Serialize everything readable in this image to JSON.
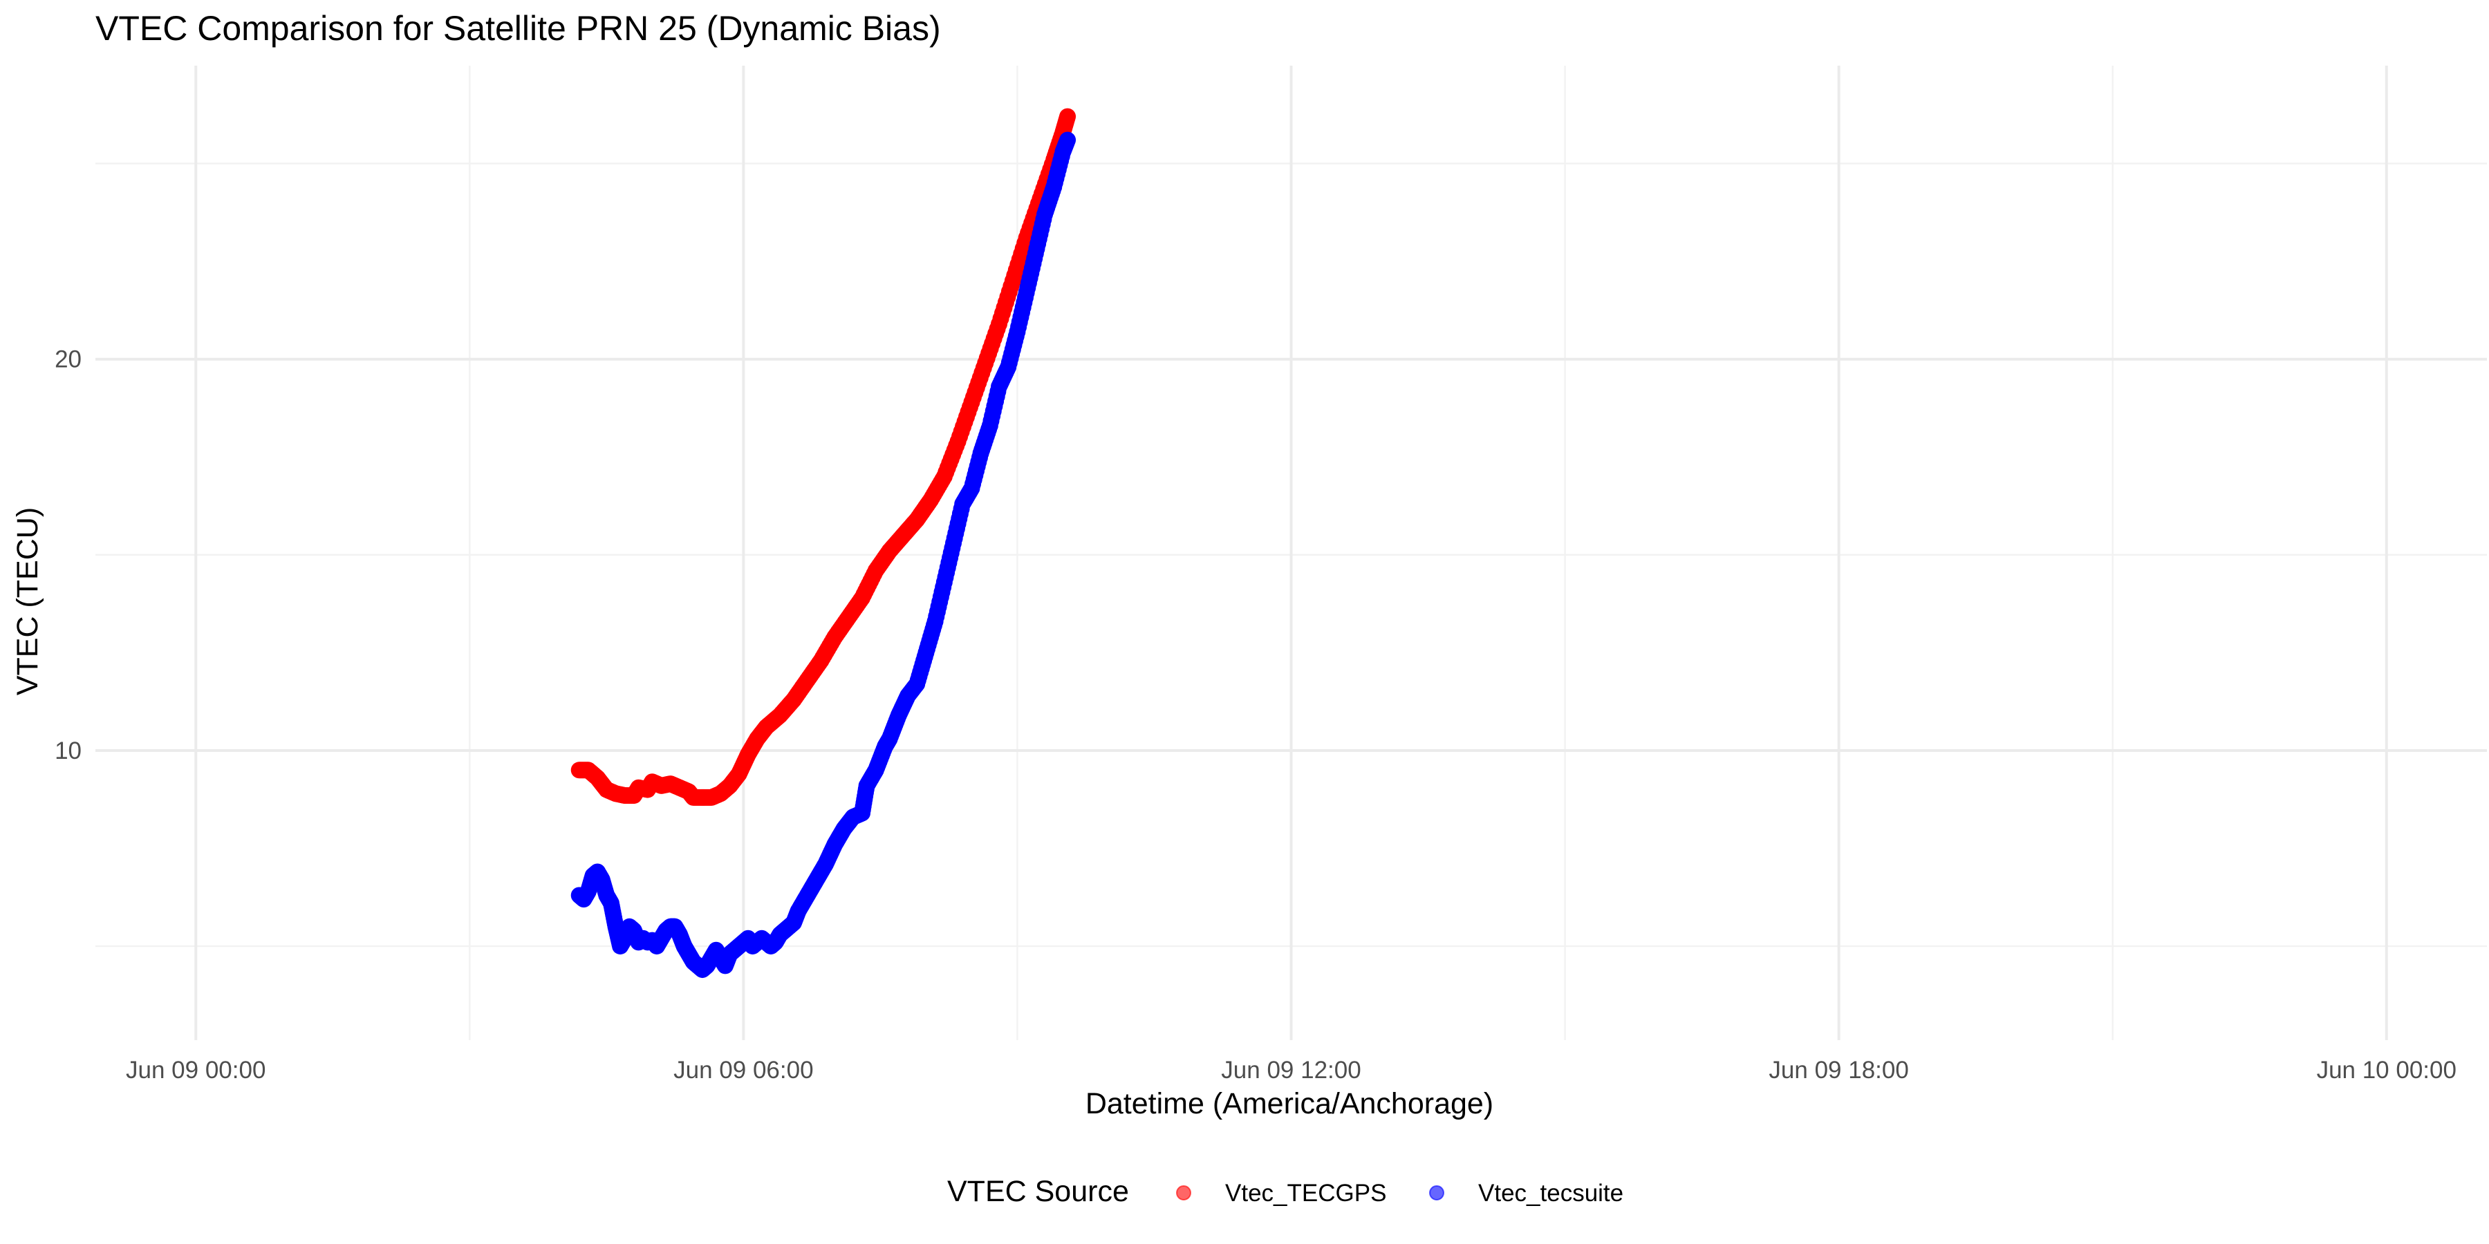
{
  "chart_data": {
    "type": "scatter",
    "title": "VTEC Comparison for Satellite PRN 25 (Dynamic Bias)",
    "xlabel": "Datetime (America/Anchorage)",
    "ylabel": "VTEC (TECU)",
    "x_type": "datetime",
    "x_ticks": [
      "Jun 09 00:00",
      "Jun 09 06:00",
      "Jun 09 12:00",
      "Jun 09 18:00",
      "Jun 10 00:00"
    ],
    "x_tick_hours": [
      0,
      6,
      12,
      18,
      24
    ],
    "xlim_hours": [
      -1.1,
      25.1
    ],
    "y_ticks": [
      10,
      20
    ],
    "ylim": [
      2.6,
      27.5
    ],
    "grid": true,
    "legend": {
      "title": "VTEC Source",
      "position": "bottom"
    },
    "series": [
      {
        "name": "Vtec_TECGPS",
        "color": "#ff0000",
        "points": [
          [
            4.2,
            9.5
          ],
          [
            4.3,
            9.5
          ],
          [
            4.4,
            9.3
          ],
          [
            4.5,
            9.0
          ],
          [
            4.6,
            8.9
          ],
          [
            4.7,
            8.85
          ],
          [
            4.8,
            8.85
          ],
          [
            4.85,
            9.05
          ],
          [
            4.95,
            9.0
          ],
          [
            5.0,
            9.2
          ],
          [
            5.1,
            9.1
          ],
          [
            5.2,
            9.15
          ],
          [
            5.3,
            9.05
          ],
          [
            5.4,
            8.95
          ],
          [
            5.45,
            8.8
          ],
          [
            5.55,
            8.8
          ],
          [
            5.65,
            8.8
          ],
          [
            5.75,
            8.9
          ],
          [
            5.85,
            9.1
          ],
          [
            5.95,
            9.4
          ],
          [
            6.05,
            9.9
          ],
          [
            6.15,
            10.3
          ],
          [
            6.25,
            10.6
          ],
          [
            6.4,
            10.9
          ],
          [
            6.55,
            11.3
          ],
          [
            6.7,
            11.8
          ],
          [
            6.85,
            12.3
          ],
          [
            7.0,
            12.9
          ],
          [
            7.15,
            13.4
          ],
          [
            7.3,
            13.9
          ],
          [
            7.45,
            14.6
          ],
          [
            7.6,
            15.1
          ],
          [
            7.75,
            15.5
          ],
          [
            7.9,
            15.9
          ],
          [
            8.05,
            16.4
          ],
          [
            8.2,
            17.0
          ],
          [
            8.35,
            17.9
          ],
          [
            8.5,
            18.9
          ],
          [
            8.65,
            19.9
          ],
          [
            8.8,
            20.9
          ],
          [
            8.95,
            22.0
          ],
          [
            9.1,
            23.1
          ],
          [
            9.25,
            24.1
          ],
          [
            9.4,
            25.1
          ],
          [
            9.5,
            25.8
          ],
          [
            9.55,
            26.2
          ]
        ]
      },
      {
        "name": "Vtec_tecsuite",
        "color": "#0000ff",
        "points": [
          [
            4.2,
            6.3
          ],
          [
            4.25,
            6.2
          ],
          [
            4.3,
            6.4
          ],
          [
            4.35,
            6.8
          ],
          [
            4.4,
            6.9
          ],
          [
            4.45,
            6.7
          ],
          [
            4.5,
            6.3
          ],
          [
            4.55,
            6.1
          ],
          [
            4.6,
            5.5
          ],
          [
            4.65,
            5.0
          ],
          [
            4.7,
            5.2
          ],
          [
            4.75,
            5.5
          ],
          [
            4.8,
            5.4
          ],
          [
            4.85,
            5.1
          ],
          [
            4.9,
            5.2
          ],
          [
            4.95,
            5.1
          ],
          [
            5.0,
            5.15
          ],
          [
            5.05,
            5.0
          ],
          [
            5.1,
            5.2
          ],
          [
            5.15,
            5.4
          ],
          [
            5.2,
            5.5
          ],
          [
            5.25,
            5.5
          ],
          [
            5.3,
            5.3
          ],
          [
            5.35,
            5.0
          ],
          [
            5.4,
            4.8
          ],
          [
            5.45,
            4.6
          ],
          [
            5.5,
            4.5
          ],
          [
            5.55,
            4.4
          ],
          [
            5.6,
            4.5
          ],
          [
            5.65,
            4.7
          ],
          [
            5.7,
            4.9
          ],
          [
            5.75,
            4.7
          ],
          [
            5.8,
            4.5
          ],
          [
            5.85,
            4.8
          ],
          [
            5.9,
            4.9
          ],
          [
            5.95,
            5.0
          ],
          [
            6.0,
            5.1
          ],
          [
            6.05,
            5.2
          ],
          [
            6.1,
            5.0
          ],
          [
            6.15,
            5.1
          ],
          [
            6.2,
            5.2
          ],
          [
            6.25,
            5.1
          ],
          [
            6.3,
            5.0
          ],
          [
            6.35,
            5.1
          ],
          [
            6.4,
            5.3
          ],
          [
            6.45,
            5.4
          ],
          [
            6.5,
            5.5
          ],
          [
            6.55,
            5.6
          ],
          [
            6.6,
            5.9
          ],
          [
            6.7,
            6.3
          ],
          [
            6.8,
            6.7
          ],
          [
            6.9,
            7.1
          ],
          [
            7.0,
            7.6
          ],
          [
            7.1,
            8.0
          ],
          [
            7.2,
            8.3
          ],
          [
            7.3,
            8.4
          ],
          [
            7.35,
            9.1
          ],
          [
            7.45,
            9.5
          ],
          [
            7.55,
            10.1
          ],
          [
            7.6,
            10.3
          ],
          [
            7.7,
            10.9
          ],
          [
            7.8,
            11.4
          ],
          [
            7.9,
            11.7
          ],
          [
            8.0,
            12.5
          ],
          [
            8.1,
            13.3
          ],
          [
            8.2,
            14.3
          ],
          [
            8.3,
            15.3
          ],
          [
            8.4,
            16.3
          ],
          [
            8.5,
            16.7
          ],
          [
            8.6,
            17.6
          ],
          [
            8.7,
            18.3
          ],
          [
            8.8,
            19.3
          ],
          [
            8.9,
            19.8
          ],
          [
            9.0,
            20.7
          ],
          [
            9.1,
            21.7
          ],
          [
            9.2,
            22.7
          ],
          [
            9.3,
            23.7
          ],
          [
            9.4,
            24.4
          ],
          [
            9.5,
            25.3
          ],
          [
            9.55,
            25.6
          ]
        ]
      }
    ]
  }
}
